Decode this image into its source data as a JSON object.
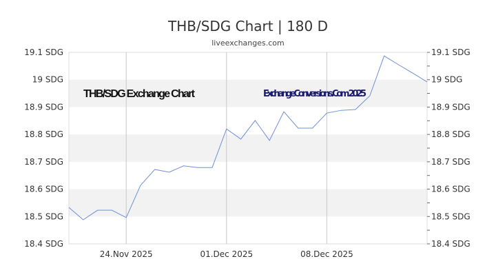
{
  "title": "THB/SDG Chart | 180 D",
  "subtitle": "liveexchanges.com",
  "chart_data": {
    "type": "line",
    "title": "THB/SDG Chart | 180 D",
    "inner_label": "THB/SDG Exchange Chart",
    "watermark": "ExchangeConversions.Com 2025",
    "x": [
      "2025-11-20",
      "2025-11-21",
      "2025-11-22",
      "2025-11-23",
      "2025-11-24",
      "2025-11-25",
      "2025-11-26",
      "2025-11-27",
      "2025-11-28",
      "2025-11-29",
      "2025-11-30",
      "2025-12-01",
      "2025-12-02",
      "2025-12-03",
      "2025-12-04",
      "2025-12-05",
      "2025-12-06",
      "2025-12-07",
      "2025-12-08",
      "2025-12-09",
      "2025-12-10",
      "2025-12-11",
      "2025-12-12",
      "2025-12-13",
      "2025-12-14",
      "2025-12-15"
    ],
    "values": [
      18.533,
      18.488,
      18.523,
      18.523,
      18.496,
      18.614,
      18.672,
      18.662,
      18.685,
      18.679,
      18.679,
      18.82,
      18.783,
      18.851,
      18.778,
      18.883,
      18.823,
      18.823,
      18.878,
      18.888,
      18.891,
      18.941,
      19.087,
      19.055,
      19.024,
      18.992
    ],
    "ylim": [
      18.4,
      19.1
    ],
    "y_ticks": [
      "18.4 SDG",
      "18.5 SDG",
      "18.6 SDG",
      "18.7 SDG",
      "18.8 SDG",
      "18.9 SDG",
      "19 SDG",
      "19.1 SDG"
    ],
    "x_ticks": [
      {
        "label": "24.Nov 2025",
        "date": "2025-11-24"
      },
      {
        "label": "01.Dec 2025",
        "date": "2025-12-01"
      },
      {
        "label": "08.Dec 2025",
        "date": "2025-12-08"
      }
    ],
    "line_color": "#6f8fd8",
    "band_color": "#f2f2f2",
    "grid": true
  }
}
